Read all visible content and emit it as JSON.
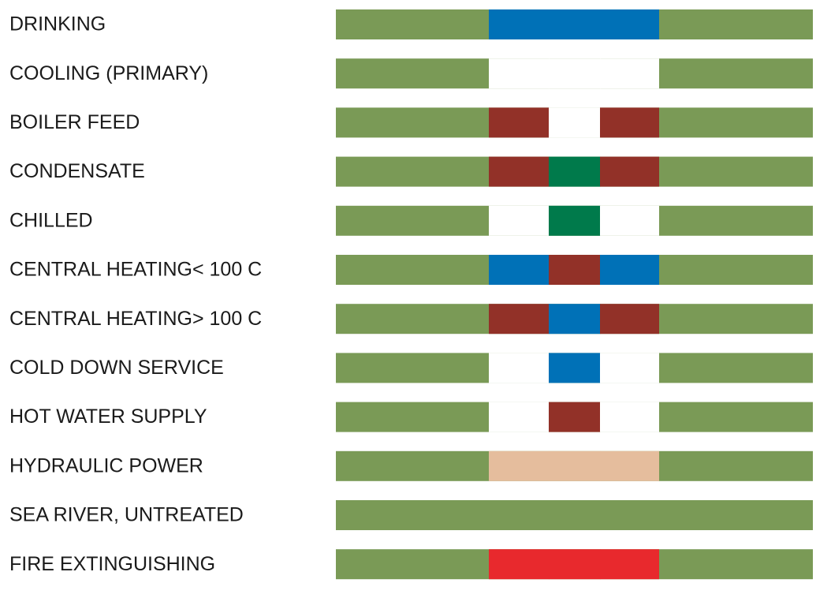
{
  "pipe_color_codes": {
    "base_color": "#7a9a56",
    "rows": [
      {
        "label": "DRINKING",
        "bands": [
          "#0071b7",
          "#0071b7",
          "#0071b7"
        ]
      },
      {
        "label": "COOLING (PRIMARY)",
        "bands": [
          "#ffffff",
          "#ffffff",
          "#ffffff"
        ]
      },
      {
        "label": "BOILER FEED",
        "bands": [
          "#923128",
          "#ffffff",
          "#923128"
        ]
      },
      {
        "label": "CONDENSATE",
        "bands": [
          "#923128",
          "#007a4b",
          "#923128"
        ]
      },
      {
        "label": "CHILLED",
        "bands": [
          "#ffffff",
          "#007a4b",
          "#ffffff"
        ]
      },
      {
        "label": "CENTRAL HEATING< 100 C",
        "bands": [
          "#0071b7",
          "#923128",
          "#0071b7"
        ]
      },
      {
        "label": "CENTRAL HEATING> 100 C",
        "bands": [
          "#923128",
          "#0071b7",
          "#923128"
        ]
      },
      {
        "label": "COLD DOWN SERVICE",
        "bands": [
          "#ffffff",
          "#0071b7",
          "#ffffff"
        ]
      },
      {
        "label": "HOT WATER SUPPLY",
        "bands": [
          "#ffffff",
          "#923128",
          "#ffffff"
        ]
      },
      {
        "label": "HYDRAULIC POWER",
        "bands": [
          "#e5bd9d",
          "#e5bd9d",
          "#e5bd9d"
        ]
      },
      {
        "label": "SEA RIVER, UNTREATED",
        "bands": null
      },
      {
        "label": "FIRE EXTINGUISHING",
        "bands": [
          "#e8292d",
          "#e8292d",
          "#e8292d"
        ]
      }
    ]
  }
}
